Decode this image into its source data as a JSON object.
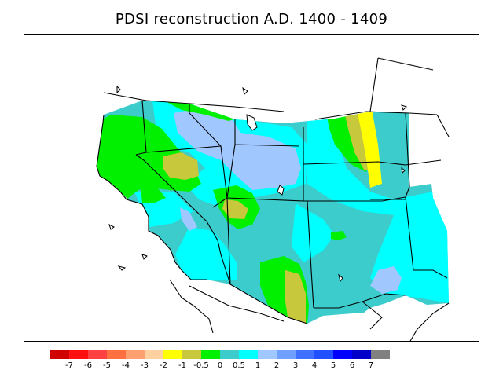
{
  "title": "PDSI reconstruction A.D. 1400 - 1409",
  "legend": {
    "colors": [
      "#d00000",
      "#ff1010",
      "#ff4040",
      "#ff7040",
      "#ffa070",
      "#ffd0a0",
      "#ffff00",
      "#c8c83c",
      "#00f000",
      "#3ccccc",
      "#00ffff",
      "#a0c8ff",
      "#70a0ff",
      "#4070ff",
      "#2050ff",
      "#0000ff",
      "#0000c8",
      "#808080"
    ],
    "labels": [
      "-7",
      "-6",
      "-5",
      "-4",
      "-3",
      "-2",
      "-1",
      "-0.5",
      "0",
      "0.5",
      "1",
      "2",
      "3",
      "4",
      "5",
      "6",
      "7"
    ]
  }
}
